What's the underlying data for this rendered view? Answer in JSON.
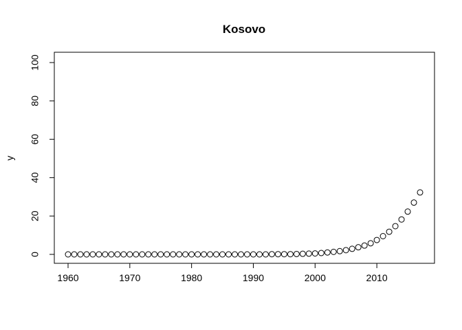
{
  "chart_data": {
    "type": "scatter",
    "title": "Kosovo",
    "xlabel": "",
    "ylabel": "y",
    "xlim": [
      1960,
      2017
    ],
    "ylim": [
      0,
      100
    ],
    "x_ticks": [
      1960,
      1970,
      1980,
      1990,
      2000,
      2010
    ],
    "y_ticks": [
      0,
      20,
      40,
      60,
      80,
      100
    ],
    "grid": false,
    "marker": "open-circle",
    "series": [
      {
        "x": [
          1960,
          1961,
          1962,
          1963,
          1964,
          1965,
          1966,
          1967,
          1968,
          1969,
          1970,
          1971,
          1972,
          1973,
          1974,
          1975,
          1976,
          1977,
          1978,
          1979,
          1980,
          1981,
          1982,
          1983,
          1984,
          1985,
          1986,
          1987,
          1988,
          1989,
          1990,
          1991,
          1992,
          1993,
          1994,
          1995,
          1996,
          1997,
          1998,
          1999,
          2000,
          2001,
          2002,
          2003,
          2004,
          2005,
          2006,
          2007,
          2008,
          2009,
          2010,
          2011,
          2012,
          2013,
          2014,
          2015,
          2016,
          2017
        ],
        "y": [
          0,
          0,
          0,
          0,
          0,
          0,
          0,
          0,
          0,
          0,
          0,
          0,
          0,
          0,
          0,
          0,
          0,
          0,
          0,
          0,
          0,
          0,
          0,
          0,
          0,
          0,
          0,
          0,
          0,
          0,
          0,
          0,
          0,
          0.1,
          0.1,
          0.1,
          0.1,
          0.2,
          0.3,
          0.4,
          0.5,
          0.7,
          1.0,
          1.3,
          1.7,
          2.2,
          2.9,
          3.7,
          4.6,
          5.8,
          7.5,
          9.5,
          11.8,
          14.7,
          18.2,
          22.3,
          27.0,
          32.3
        ]
      }
    ]
  }
}
